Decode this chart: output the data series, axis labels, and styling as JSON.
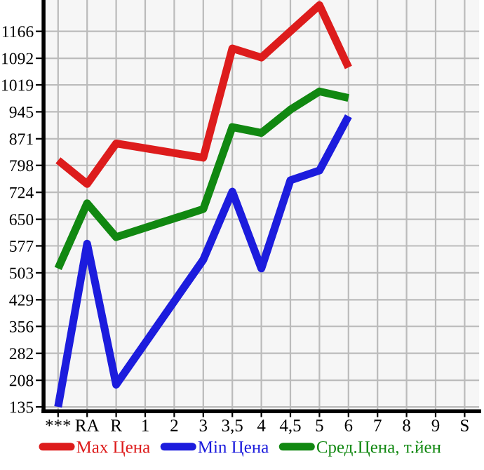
{
  "chart_data": {
    "type": "line",
    "categories": [
      "***",
      "RA",
      "R",
      "1",
      "2",
      "3",
      "3,5",
      "4",
      "4,5",
      "5",
      "6",
      "7",
      "8",
      "9",
      "S"
    ],
    "series": [
      {
        "name": "Max Цена",
        "color": "#dd1c1c",
        "values": [
          812,
          747,
          858,
          null,
          null,
          819,
          1119,
          1094,
          1166,
          1238,
          1067,
          null,
          null,
          null,
          null
        ]
      },
      {
        "name": "Min Цена",
        "color": "#1c1cdd",
        "values": [
          135,
          583,
          196,
          null,
          null,
          539,
          726,
          515,
          757,
          784,
          933,
          null,
          null,
          null,
          null
        ]
      },
      {
        "name": "Сред.Цена, т.йен",
        "color": "#118811",
        "values": [
          515,
          694,
          601,
          null,
          null,
          678,
          903,
          887,
          951,
          1001,
          983,
          null,
          null,
          null,
          null
        ]
      }
    ],
    "ylim": [
      123,
      1252
    ],
    "yticks": [
      135,
      208,
      282,
      356,
      429,
      503,
      577,
      650,
      724,
      798,
      871,
      945,
      1019,
      1092,
      1166
    ],
    "grid": true,
    "legend": "bottom",
    "marker": "none",
    "line_style": "solid"
  }
}
